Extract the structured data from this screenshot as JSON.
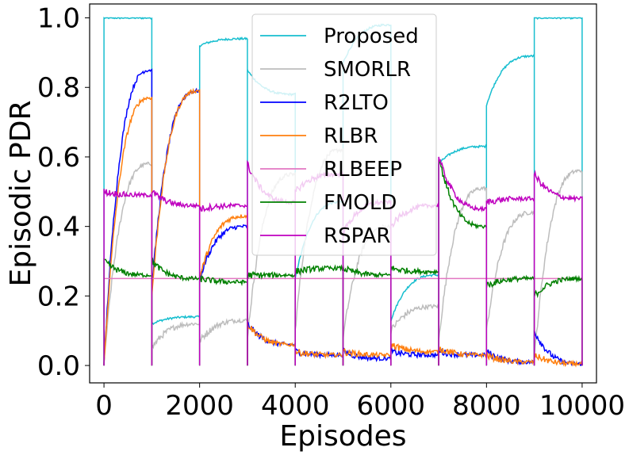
{
  "chart_data": {
    "type": "line",
    "title": "",
    "xlabel": "Episodes",
    "ylabel": "Episodic PDR",
    "xlim": [
      -300,
      10300
    ],
    "ylim": [
      -0.05,
      1.04
    ],
    "xticks": [
      "0",
      "2000",
      "4000",
      "6000",
      "8000",
      "10000"
    ],
    "yticks": [
      "0.0",
      "0.2",
      "0.4",
      "0.6",
      "0.8",
      "1.0"
    ],
    "grid": false,
    "legend_position": "upper center",
    "segment_boundaries": [
      0,
      1000,
      2000,
      3000,
      4000,
      5000,
      6000,
      7000,
      8000,
      9000,
      10000
    ],
    "series": [
      {
        "name": "Proposed",
        "color": "#17becf",
        "start": [
          1.0,
          0.12,
          0.92,
          0.85,
          0.25,
          0.87,
          0.13,
          0.58,
          0.75,
          1.0
        ],
        "end": [
          1.0,
          0.14,
          0.94,
          0.78,
          0.47,
          0.98,
          0.26,
          0.63,
          0.89,
          1.0
        ]
      },
      {
        "name": "SMORLR",
        "color": "#bdbdbd",
        "start": [
          0.0,
          0.05,
          0.07,
          0.08,
          0.1,
          0.08,
          0.1,
          0.07,
          0.1,
          0.02
        ],
        "end": [
          0.58,
          0.12,
          0.13,
          0.55,
          0.62,
          0.4,
          0.17,
          0.51,
          0.44,
          0.56
        ]
      },
      {
        "name": "R2LTO",
        "color": "#0000ff",
        "start": [
          0.0,
          0.22,
          0.25,
          0.12,
          0.04,
          0.04,
          0.04,
          0.04,
          0.04,
          0.1
        ],
        "end": [
          0.85,
          0.79,
          0.4,
          0.06,
          0.03,
          0.02,
          0.03,
          0.03,
          0.01,
          0.005
        ]
      },
      {
        "name": "RLBR",
        "color": "#ff7f0e",
        "start": [
          0.0,
          0.2,
          0.25,
          0.12,
          0.04,
          0.04,
          0.06,
          0.05,
          0.03,
          0.03
        ],
        "end": [
          0.77,
          0.79,
          0.43,
          0.06,
          0.03,
          0.03,
          0.04,
          0.03,
          0.01,
          0.005
        ]
      },
      {
        "name": "RLBEEP",
        "color": "#e377c2",
        "start": [
          0.25,
          0.25,
          0.25,
          0.25,
          0.25,
          0.25,
          0.25,
          0.25,
          0.25,
          0.25
        ],
        "end": [
          0.25,
          0.25,
          0.25,
          0.25,
          0.25,
          0.25,
          0.25,
          0.25,
          0.25,
          0.25
        ]
      },
      {
        "name": "FMOLD",
        "color": "#008000",
        "start": [
          0.3,
          0.3,
          0.25,
          0.26,
          0.27,
          0.28,
          0.28,
          0.6,
          0.23,
          0.2
        ],
        "end": [
          0.26,
          0.25,
          0.24,
          0.26,
          0.28,
          0.26,
          0.27,
          0.4,
          0.25,
          0.25
        ]
      },
      {
        "name": "RSPAR",
        "color": "#bf00bf",
        "start": [
          0.5,
          0.5,
          0.45,
          0.58,
          0.5,
          0.38,
          0.4,
          0.6,
          0.47,
          0.55
        ],
        "end": [
          0.49,
          0.46,
          0.46,
          0.47,
          0.55,
          0.47,
          0.46,
          0.45,
          0.48,
          0.48
        ]
      }
    ]
  }
}
